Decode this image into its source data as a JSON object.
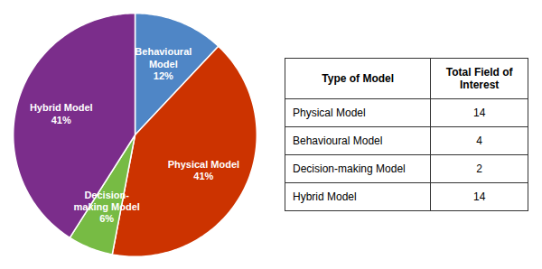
{
  "chart_data": {
    "type": "pie",
    "categories": [
      "Behavioural\nModel",
      "Physical Model",
      "Decision-\nmaking Model",
      "Hybrid Model"
    ],
    "values": [
      12,
      41,
      6,
      41
    ],
    "value_labels": [
      "12%",
      "41%",
      "6%",
      "41%"
    ],
    "data_labels": true,
    "colors": [
      "#4F86C6",
      "#CC3300",
      "#77BB44",
      "#7B2D8B"
    ],
    "table": {
      "headers": [
        "Type of Model",
        "Total Field of\nInterest"
      ],
      "rows": [
        [
          "Physical Model",
          14
        ],
        [
          "Behavioural Model",
          4
        ],
        [
          "Decision-making Model",
          2
        ],
        [
          "Hybrid Model",
          14
        ]
      ]
    }
  }
}
